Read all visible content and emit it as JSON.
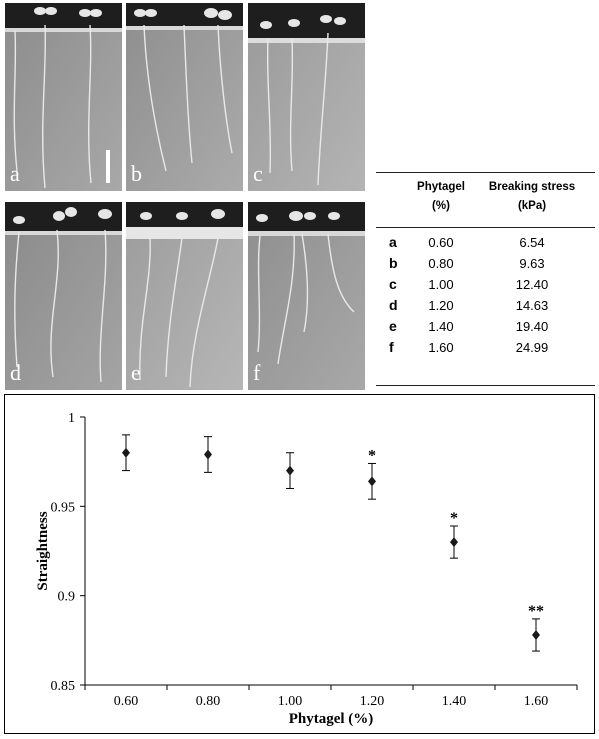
{
  "panels": [
    "a",
    "b",
    "c",
    "d",
    "e",
    "f"
  ],
  "table": {
    "header_col1": "Phytagel",
    "header_col1_unit": "(%)",
    "header_col2": "Breaking stress",
    "header_col2_unit": "(kPa)",
    "rows": [
      {
        "label": "a",
        "phytagel": "0.60",
        "stress": "6.54"
      },
      {
        "label": "b",
        "phytagel": "0.80",
        "stress": "9.63"
      },
      {
        "label": "c",
        "phytagel": "1.00",
        "stress": "12.40"
      },
      {
        "label": "d",
        "phytagel": "1.20",
        "stress": "14.63"
      },
      {
        "label": "e",
        "phytagel": "1.40",
        "stress": "19.40"
      },
      {
        "label": "f",
        "phytagel": "1.60",
        "stress": "24.99"
      }
    ]
  },
  "chart_data": {
    "type": "scatter",
    "xlabel": "Phytagel (%)",
    "ylabel": "Straightness",
    "categories": [
      "0.60",
      "0.80",
      "1.00",
      "1.20",
      "1.40",
      "1.60"
    ],
    "values": [
      0.98,
      0.979,
      0.97,
      0.964,
      0.93,
      0.878
    ],
    "error": [
      0.01,
      0.01,
      0.01,
      0.01,
      0.009,
      0.009
    ],
    "significance": [
      "",
      "",
      "",
      "*",
      "*",
      "**"
    ],
    "ylim": [
      0.85,
      1.0
    ],
    "yticks": [
      "0.85",
      "0.9",
      "0.95",
      "1"
    ],
    "ytick_values": [
      0.85,
      0.9,
      0.95,
      1.0
    ],
    "grid": false,
    "legend": "none",
    "marker_color": "#1a1a1a"
  }
}
